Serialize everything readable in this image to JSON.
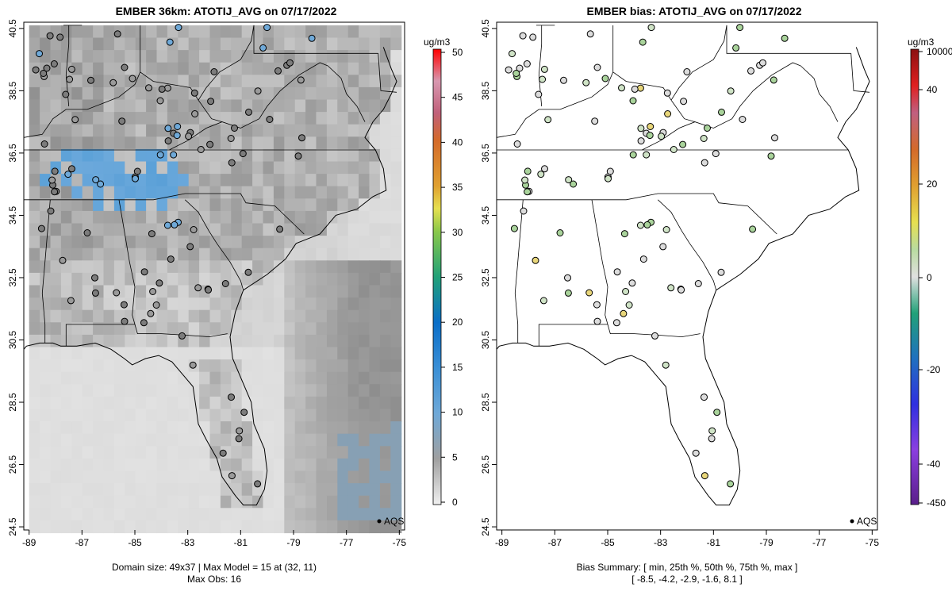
{
  "panels": [
    {
      "title": "EMBER 36km: ATOTIJ_AVG on 07/17/2022",
      "footer_line1": "Domain size: 49x37 | Max Model = 15 at (32, 11)",
      "footer_line2": "Max Obs: 16",
      "legend_label": "AQS",
      "colorbar_unit": "ug/m3",
      "colorbar_ticks": [
        "0",
        "5",
        "10",
        "15",
        "20",
        "25",
        "30",
        "35",
        "40",
        "45",
        "50"
      ]
    },
    {
      "title": "EMBER bias: ATOTIJ_AVG on 07/17/2022",
      "footer_line1": "Bias Summary: [ min, 25th %, 50th %, 75th %, max ]",
      "footer_line2": "[ -8.5,   -4.2,   -2.9,   -1.6,   8.1 ]",
      "legend_label": "AQS",
      "colorbar_unit": "ug/m3",
      "colorbar_ticks": [
        "-450",
        "-40",
        "-20",
        "0",
        "20",
        "40",
        "10000"
      ]
    }
  ],
  "chart_data": [
    {
      "type": "heatmap",
      "title": "EMBER 36km: ATOTIJ_AVG on 07/17/2022",
      "x_ticks": [
        "-89",
        "-87",
        "-85",
        "-83",
        "-81",
        "-79",
        "-77",
        "-75"
      ],
      "y_ticks": [
        "24.5",
        "26.5",
        "28.5",
        "30.5",
        "32.5",
        "34.5",
        "36.5",
        "38.5",
        "40.5"
      ],
      "xlim": [
        -89.2,
        -74.8
      ],
      "ylim": [
        24.4,
        40.7
      ],
      "colorbar_range": [
        0,
        50
      ],
      "domain_size": "49x37",
      "max_model": 15,
      "max_model_cell": [
        32,
        11
      ],
      "max_obs": 16
    },
    {
      "type": "scatter",
      "title": "EMBER bias: ATOTIJ_AVG on 07/17/2022",
      "x_ticks": [
        "-89",
        "-87",
        "-85",
        "-83",
        "-81",
        "-79",
        "-77",
        "-75"
      ],
      "y_ticks": [
        "24.5",
        "26.5",
        "28.5",
        "30.5",
        "32.5",
        "34.5",
        "36.5",
        "38.5",
        "40.5"
      ],
      "xlim": [
        -89.2,
        -74.8
      ],
      "ylim": [
        24.4,
        40.7
      ],
      "colorbar_range": [
        -450,
        10000
      ],
      "bias_summary": {
        "min": -8.5,
        "p25": -4.2,
        "p50": -2.9,
        "p75": -1.6,
        "max": 8.1
      }
    }
  ]
}
